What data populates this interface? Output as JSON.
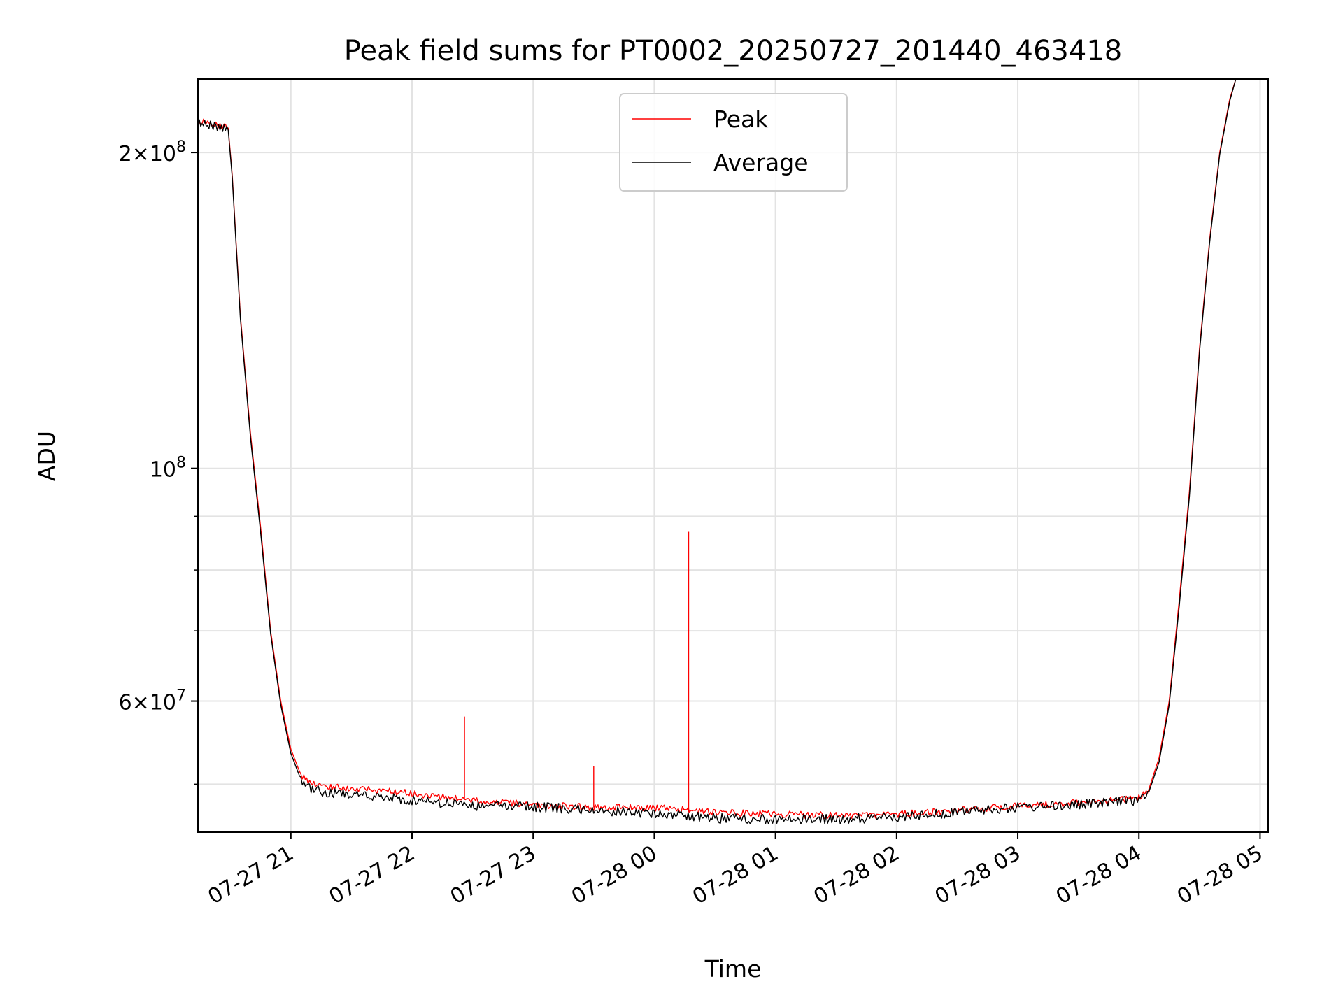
{
  "chart_data": {
    "type": "line",
    "title": "Peak field sums for PT0002_20250727_201440_463418",
    "xlabel": "Time",
    "ylabel": "ADU",
    "x_axis_type": "datetime",
    "xlim": [
      "2025-07-27 20:14",
      "2025-07-28 05:04"
    ],
    "ylim": [
      45000000,
      235000000
    ],
    "y_scale": "log",
    "grid": true,
    "legend_position": "upper center",
    "x_tick_labels": [
      "07-27 21",
      "07-27 22",
      "07-27 23",
      "07-28 00",
      "07-28 01",
      "07-28 02",
      "07-28 03",
      "07-28 04",
      "07-28 05"
    ],
    "x_ticks": [
      "2025-07-27 21:00",
      "2025-07-27 22:00",
      "2025-07-27 23:00",
      "2025-07-28 00:00",
      "2025-07-28 01:00",
      "2025-07-28 02:00",
      "2025-07-28 03:00",
      "2025-07-28 04:00",
      "2025-07-28 05:00"
    ],
    "y_tick_labels": [
      {
        "value": 200000000,
        "mantissa": "2",
        "exponent": "8"
      },
      {
        "value": 100000000,
        "mantissa": "",
        "exponent": "8"
      },
      {
        "value": 60000000,
        "mantissa": "6",
        "exponent": "7"
      }
    ],
    "y_minor_ticks": [
      50000000,
      70000000,
      80000000,
      90000000
    ],
    "series": [
      {
        "name": "Peak",
        "color": "#ff0000",
        "x": [
          "2025-07-27 20:14",
          "2025-07-27 20:29",
          "2025-07-27 20:31",
          "2025-07-27 20:35",
          "2025-07-27 20:40",
          "2025-07-27 20:45",
          "2025-07-27 20:50",
          "2025-07-27 20:55",
          "2025-07-27 21:00",
          "2025-07-27 21:05",
          "2025-07-27 21:10",
          "2025-07-27 21:15",
          "2025-07-27 21:30",
          "2025-07-27 22:00",
          "2025-07-27 22:30",
          "2025-07-27 23:00",
          "2025-07-27 23:30",
          "2025-07-28 00:00",
          "2025-07-28 00:30",
          "2025-07-28 01:00",
          "2025-07-28 01:30",
          "2025-07-28 02:00",
          "2025-07-28 02:30",
          "2025-07-28 03:00",
          "2025-07-28 03:30",
          "2025-07-28 04:00",
          "2025-07-28 04:05",
          "2025-07-28 04:10",
          "2025-07-28 04:15",
          "2025-07-28 04:20",
          "2025-07-28 04:25",
          "2025-07-28 04:30",
          "2025-07-28 04:35",
          "2025-07-28 04:40",
          "2025-07-28 04:45",
          "2025-07-28 04:48"
        ],
        "values": [
          215000000,
          211000000,
          190000000,
          140000000,
          108000000,
          88000000,
          70000000,
          60000000,
          54000000,
          51000000,
          50000000,
          49800000,
          49500000,
          49000000,
          48300000,
          47800000,
          47500000,
          47500000,
          47000000,
          46800000,
          46700000,
          46800000,
          47200000,
          47700000,
          48000000,
          48500000,
          49500000,
          53000000,
          60000000,
          75000000,
          95000000,
          130000000,
          165000000,
          200000000,
          225000000,
          235000000
        ],
        "spikes": [
          {
            "x": "2025-07-27 22:26",
            "value": 58000000
          },
          {
            "x": "2025-07-27 23:30",
            "value": 52000000
          },
          {
            "x": "2025-07-28 00:17",
            "value": 87000000
          }
        ]
      },
      {
        "name": "Average",
        "color": "#000000",
        "x": [
          "2025-07-27 20:14",
          "2025-07-27 20:29",
          "2025-07-27 20:31",
          "2025-07-27 20:35",
          "2025-07-27 20:40",
          "2025-07-27 20:45",
          "2025-07-27 20:50",
          "2025-07-27 20:55",
          "2025-07-27 21:00",
          "2025-07-27 21:05",
          "2025-07-27 21:10",
          "2025-07-27 21:15",
          "2025-07-27 21:30",
          "2025-07-27 22:00",
          "2025-07-27 22:30",
          "2025-07-27 23:00",
          "2025-07-27 23:30",
          "2025-07-28 00:00",
          "2025-07-28 00:30",
          "2025-07-28 01:00",
          "2025-07-28 01:30",
          "2025-07-28 02:00",
          "2025-07-28 02:30",
          "2025-07-28 03:00",
          "2025-07-28 03:30",
          "2025-07-28 04:00",
          "2025-07-28 04:05",
          "2025-07-28 04:10",
          "2025-07-28 04:15",
          "2025-07-28 04:20",
          "2025-07-28 04:25",
          "2025-07-28 04:30",
          "2025-07-28 04:35",
          "2025-07-28 04:40",
          "2025-07-28 04:45",
          "2025-07-28 04:48"
        ],
        "values": [
          214000000,
          210000000,
          189000000,
          139000000,
          107000000,
          87000000,
          69500000,
          59500000,
          53500000,
          50500000,
          49500000,
          49200000,
          48800000,
          48300000,
          47700000,
          47600000,
          47200000,
          46900000,
          46400000,
          46300000,
          46300000,
          46500000,
          47000000,
          47500000,
          47800000,
          48300000,
          49200000,
          52500000,
          59500000,
          74000000,
          94000000,
          129000000,
          164000000,
          199000000,
          224000000,
          235000000
        ]
      }
    ]
  }
}
